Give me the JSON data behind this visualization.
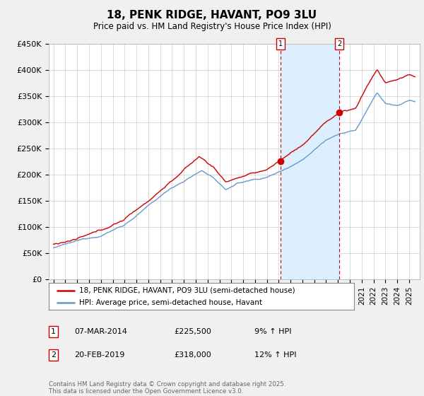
{
  "title": "18, PENK RIDGE, HAVANT, PO9 3LU",
  "subtitle": "Price paid vs. HM Land Registry's House Price Index (HPI)",
  "ylim": [
    0,
    450000
  ],
  "yticks": [
    0,
    50000,
    100000,
    150000,
    200000,
    250000,
    300000,
    350000,
    400000,
    450000
  ],
  "ytick_labels": [
    "£0",
    "£50K",
    "£100K",
    "£150K",
    "£200K",
    "£250K",
    "£300K",
    "£350K",
    "£400K",
    "£450K"
  ],
  "x_start_year": 1995,
  "x_end_year": 2025,
  "purchase1_year": 2014.18,
  "purchase1_price": 225500,
  "purchase2_year": 2019.13,
  "purchase2_price": 318000,
  "line_color_property": "#cc0000",
  "line_color_hpi": "#6699cc",
  "shade_color": "#ddeeff",
  "legend_label_property": "18, PENK RIDGE, HAVANT, PO9 3LU (semi-detached house)",
  "legend_label_hpi": "HPI: Average price, semi-detached house, Havant",
  "annotation1_label": "1",
  "annotation1_date": "07-MAR-2014",
  "annotation1_price": "£225,500",
  "annotation1_hpi": "9% ↑ HPI",
  "annotation2_label": "2",
  "annotation2_date": "20-FEB-2019",
  "annotation2_price": "£318,000",
  "annotation2_hpi": "12% ↑ HPI",
  "footer_text": "Contains HM Land Registry data © Crown copyright and database right 2025.\nThis data is licensed under the Open Government Licence v3.0.",
  "background_color": "#f0f0f0",
  "plot_background": "#ffffff"
}
